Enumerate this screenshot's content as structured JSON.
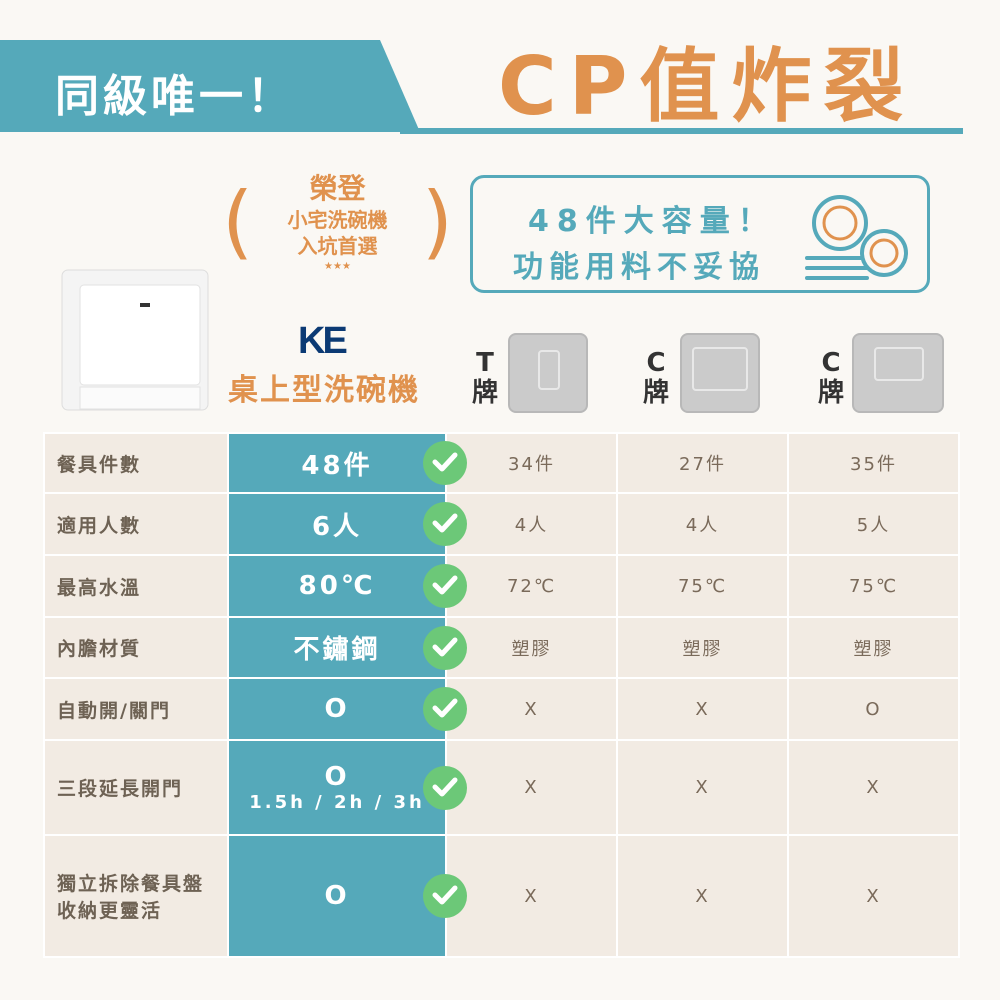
{
  "header": {
    "banner": "同級唯一！",
    "title": "CP值炸裂"
  },
  "award": {
    "line1": "榮登",
    "line2": "小宅洗碗機",
    "line3": "入坑首選",
    "stars": "★★★"
  },
  "highlight": {
    "line1": "48件大容量！",
    "line2": "功能用料不妥協",
    "icon": "plates-icon"
  },
  "product": {
    "logo": "KE",
    "name": "桌上型洗碗機"
  },
  "brands": [
    {
      "letter": "T",
      "suffix": "牌"
    },
    {
      "letter": "C",
      "suffix": "牌"
    },
    {
      "letter": "C",
      "suffix": "牌"
    }
  ],
  "colors": {
    "teal": "#55a9ba",
    "orange": "#e0924e",
    "check": "#6cc878",
    "cell": "#f2ebe3"
  },
  "rows": [
    {
      "label": "餐具件數",
      "ke": "48件",
      "ke_sub": "",
      "others": [
        "34件",
        "27件",
        "35件"
      ]
    },
    {
      "label": "適用人數",
      "ke": "6人",
      "ke_sub": "",
      "others": [
        "4人",
        "4人",
        "5人"
      ]
    },
    {
      "label": "最高水溫",
      "ke": "80℃",
      "ke_sub": "",
      "others": [
        "72℃",
        "75℃",
        "75℃"
      ]
    },
    {
      "label": "內膽材質",
      "ke": "不鏽鋼",
      "ke_sub": "",
      "others": [
        "塑膠",
        "塑膠",
        "塑膠"
      ]
    },
    {
      "label": "自動開/關門",
      "ke": "O",
      "ke_sub": "",
      "others": [
        "X",
        "X",
        "O"
      ]
    },
    {
      "label": "三段延長開門",
      "ke": "O",
      "ke_sub": "1.5h / 2h / 3h",
      "others": [
        "X",
        "X",
        "X"
      ]
    },
    {
      "label": "獨立拆除餐具盤收納更靈活",
      "ke": "O",
      "ke_sub": "",
      "others": [
        "X",
        "X",
        "X"
      ]
    }
  ]
}
